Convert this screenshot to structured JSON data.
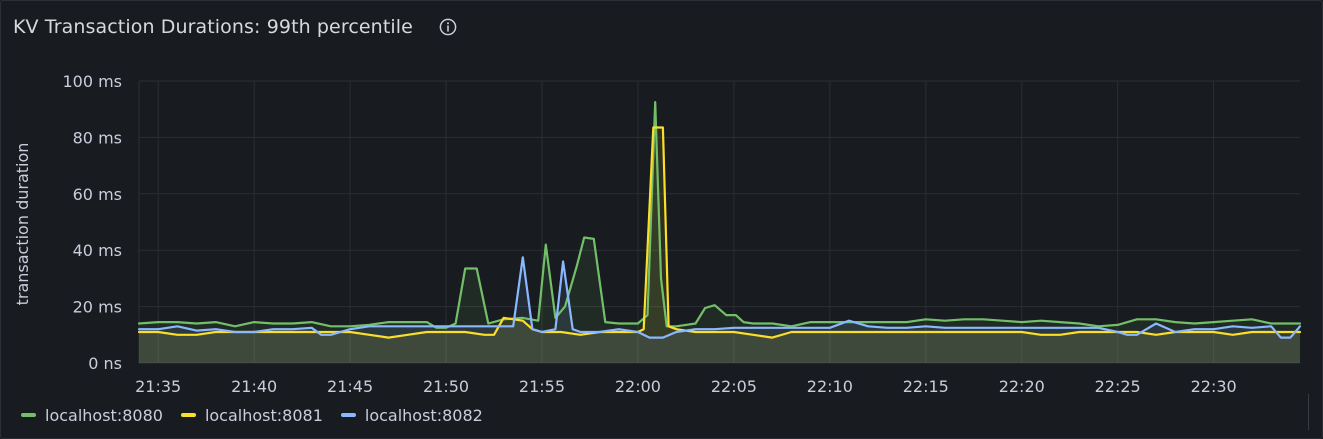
{
  "panel": {
    "title": "KV Transaction Durations: 99th percentile",
    "info_icon": "info-circle-icon"
  },
  "colors": {
    "background": "#181b1f",
    "grid": "#2b2f34",
    "text": "#ccccdc"
  },
  "chart_data": {
    "type": "line",
    "title": "KV Transaction Durations: 99th percentile",
    "ylabel": "transaction duration",
    "xlabel": "",
    "ylim": [
      0,
      100
    ],
    "y_ticks": [
      {
        "value": 0,
        "label": "0 ns"
      },
      {
        "value": 20,
        "label": "20 ms"
      },
      {
        "value": 40,
        "label": "40 ms"
      },
      {
        "value": 60,
        "label": "60 ms"
      },
      {
        "value": 80,
        "label": "80 ms"
      },
      {
        "value": 100,
        "label": "100 ms"
      }
    ],
    "x_ticks": [
      "21:35",
      "21:40",
      "21:45",
      "21:50",
      "21:55",
      "22:00",
      "22:05",
      "22:10",
      "22:15",
      "22:20",
      "22:25",
      "22:30"
    ],
    "xlim": [
      "21:34",
      "22:34.5"
    ],
    "grid": true,
    "legend_position": "bottom-left",
    "series": [
      {
        "name": "localhost:8080",
        "color": "#73bf69",
        "points": [
          [
            "21:34",
            14
          ],
          [
            "21:35",
            14.5
          ],
          [
            "21:36",
            14.5
          ],
          [
            "21:37",
            14
          ],
          [
            "21:38",
            14.5
          ],
          [
            "21:39",
            13
          ],
          [
            "21:40",
            14.5
          ],
          [
            "21:41",
            14
          ],
          [
            "21:42",
            14
          ],
          [
            "21:43",
            14.5
          ],
          [
            "21:44",
            13
          ],
          [
            "21:45",
            13
          ],
          [
            "21:46",
            13.5
          ],
          [
            "21:47",
            14.5
          ],
          [
            "21:48",
            14.5
          ],
          [
            "21:49",
            14.5
          ],
          [
            "21:49.5",
            12.5
          ],
          [
            "21:50",
            12.5
          ],
          [
            "21:50.5",
            14
          ],
          [
            "21:51",
            33.5
          ],
          [
            "21:51.6",
            33.5
          ],
          [
            "21:52.2",
            14
          ],
          [
            "21:53",
            15.5
          ],
          [
            "21:54",
            16
          ],
          [
            "21:54.8",
            15
          ],
          [
            "21:55.2",
            42
          ],
          [
            "21:55.7",
            16
          ],
          [
            "21:56.2",
            20
          ],
          [
            "21:56.8",
            34
          ],
          [
            "21:57.2",
            44.5
          ],
          [
            "21:57.7",
            44
          ],
          [
            "21:58.3",
            14.5
          ],
          [
            "21:59",
            14
          ],
          [
            "21:59.5",
            14
          ],
          [
            "22:00",
            14
          ],
          [
            "22:00.5",
            17
          ],
          [
            "22:00.9",
            92.5
          ],
          [
            "22:01.2",
            30
          ],
          [
            "22:01.5",
            13
          ],
          [
            "22:02",
            13
          ],
          [
            "22:03",
            14
          ],
          [
            "22:03.5",
            19.5
          ],
          [
            "22:04",
            20.5
          ],
          [
            "22:04.6",
            17
          ],
          [
            "22:05.1",
            17
          ],
          [
            "22:05.5",
            14.5
          ],
          [
            "22:06",
            14
          ],
          [
            "22:07",
            14
          ],
          [
            "22:08",
            13
          ],
          [
            "22:09",
            14.5
          ],
          [
            "22:10",
            14.5
          ],
          [
            "22:11",
            14.5
          ],
          [
            "22:12",
            14.5
          ],
          [
            "22:13",
            14.5
          ],
          [
            "22:14",
            14.5
          ],
          [
            "22:15",
            15.5
          ],
          [
            "22:16",
            15
          ],
          [
            "22:17",
            15.5
          ],
          [
            "22:18",
            15.5
          ],
          [
            "22:19",
            15
          ],
          [
            "22:20",
            14.5
          ],
          [
            "22:21",
            15
          ],
          [
            "22:22",
            14.5
          ],
          [
            "22:23",
            14
          ],
          [
            "22:24",
            13
          ],
          [
            "22:25",
            13.5
          ],
          [
            "22:26",
            15.5
          ],
          [
            "22:27",
            15.5
          ],
          [
            "22:28",
            14.5
          ],
          [
            "22:29",
            14
          ],
          [
            "22:30",
            14.5
          ],
          [
            "22:31",
            15
          ],
          [
            "22:32",
            15.5
          ],
          [
            "22:33",
            14
          ],
          [
            "22:34",
            14
          ],
          [
            "22:34.5",
            14
          ]
        ]
      },
      {
        "name": "localhost:8081",
        "color": "#fade2a",
        "points": [
          [
            "21:34",
            11
          ],
          [
            "21:35",
            11
          ],
          [
            "21:36",
            10
          ],
          [
            "21:37",
            10
          ],
          [
            "21:38",
            11
          ],
          [
            "21:39",
            11
          ],
          [
            "21:40",
            11
          ],
          [
            "21:41",
            11
          ],
          [
            "21:42",
            11
          ],
          [
            "21:43",
            11
          ],
          [
            "21:44",
            11
          ],
          [
            "21:45",
            11
          ],
          [
            "21:46",
            10
          ],
          [
            "21:47",
            9
          ],
          [
            "21:48",
            10
          ],
          [
            "21:49",
            11
          ],
          [
            "21:50",
            11
          ],
          [
            "21:51",
            11
          ],
          [
            "21:52",
            10
          ],
          [
            "21:52.5",
            10
          ],
          [
            "21:53",
            16
          ],
          [
            "21:54",
            15
          ],
          [
            "21:54.5",
            12
          ],
          [
            "21:55",
            11
          ],
          [
            "21:56",
            11
          ],
          [
            "21:57",
            10
          ],
          [
            "21:58",
            11
          ],
          [
            "21:59",
            11
          ],
          [
            "22:00",
            11
          ],
          [
            "22:00.3",
            12
          ],
          [
            "22:00.8",
            83.5
          ],
          [
            "22:01.3",
            83.5
          ],
          [
            "22:01.6",
            13
          ],
          [
            "22:02",
            12
          ],
          [
            "22:03",
            11
          ],
          [
            "22:04",
            11
          ],
          [
            "22:05",
            11
          ],
          [
            "22:06",
            10
          ],
          [
            "22:07",
            9
          ],
          [
            "22:08",
            11
          ],
          [
            "22:09",
            11
          ],
          [
            "22:10",
            11
          ],
          [
            "22:11",
            11
          ],
          [
            "22:12",
            11
          ],
          [
            "22:13",
            11
          ],
          [
            "22:14",
            11
          ],
          [
            "22:15",
            11
          ],
          [
            "22:16",
            11
          ],
          [
            "22:17",
            11
          ],
          [
            "22:18",
            11
          ],
          [
            "22:19",
            11
          ],
          [
            "22:20",
            11
          ],
          [
            "22:21",
            10
          ],
          [
            "22:22",
            10
          ],
          [
            "22:23",
            11
          ],
          [
            "22:24",
            11
          ],
          [
            "22:25",
            11
          ],
          [
            "22:26",
            11
          ],
          [
            "22:27",
            10
          ],
          [
            "22:28",
            11
          ],
          [
            "22:29",
            11
          ],
          [
            "22:30",
            11
          ],
          [
            "22:31",
            10
          ],
          [
            "22:32",
            11
          ],
          [
            "22:33",
            11
          ],
          [
            "22:34",
            11
          ],
          [
            "22:34.5",
            11
          ]
        ]
      },
      {
        "name": "localhost:8082",
        "color": "#8ab8ff",
        "points": [
          [
            "21:34",
            12
          ],
          [
            "21:35",
            12
          ],
          [
            "21:36",
            13
          ],
          [
            "21:37",
            11.5
          ],
          [
            "21:38",
            12
          ],
          [
            "21:39",
            11
          ],
          [
            "21:40",
            11
          ],
          [
            "21:41",
            12
          ],
          [
            "21:42",
            12
          ],
          [
            "21:43",
            12.5
          ],
          [
            "21:43.5",
            10
          ],
          [
            "21:44",
            10
          ],
          [
            "21:45",
            12
          ],
          [
            "21:46",
            13
          ],
          [
            "21:47",
            13
          ],
          [
            "21:48",
            13
          ],
          [
            "21:49",
            13
          ],
          [
            "21:50",
            13
          ],
          [
            "21:51",
            13
          ],
          [
            "21:52",
            13
          ],
          [
            "21:53",
            13
          ],
          [
            "21:53.5",
            13
          ],
          [
            "21:54",
            37.5
          ],
          [
            "21:54.5",
            12
          ],
          [
            "21:55",
            11
          ],
          [
            "21:55.7",
            12
          ],
          [
            "21:56.1",
            36
          ],
          [
            "21:56.6",
            12
          ],
          [
            "21:57",
            11
          ],
          [
            "21:58",
            11
          ],
          [
            "21:59",
            12
          ],
          [
            "22:00",
            11
          ],
          [
            "22:00.6",
            9
          ],
          [
            "22:01.3",
            9
          ],
          [
            "22:02",
            11
          ],
          [
            "22:03",
            12
          ],
          [
            "22:04",
            12
          ],
          [
            "22:05",
            12.5
          ],
          [
            "22:06",
            12.5
          ],
          [
            "22:07",
            12.5
          ],
          [
            "22:08",
            12.5
          ],
          [
            "22:09",
            12.5
          ],
          [
            "22:10",
            12.5
          ],
          [
            "22:11",
            15
          ],
          [
            "22:12",
            13
          ],
          [
            "22:13",
            12.5
          ],
          [
            "22:14",
            12.5
          ],
          [
            "22:15",
            13
          ],
          [
            "22:16",
            12.5
          ],
          [
            "22:17",
            12.5
          ],
          [
            "22:18",
            12.5
          ],
          [
            "22:19",
            12.5
          ],
          [
            "22:20",
            12.5
          ],
          [
            "22:21",
            12.5
          ],
          [
            "22:22",
            12.5
          ],
          [
            "22:23",
            12.5
          ],
          [
            "22:24",
            12.5
          ],
          [
            "22:25",
            11
          ],
          [
            "22:25.5",
            10
          ],
          [
            "22:26",
            10
          ],
          [
            "22:27",
            14
          ],
          [
            "22:28",
            11
          ],
          [
            "22:29",
            12
          ],
          [
            "22:30",
            12
          ],
          [
            "22:31",
            13
          ],
          [
            "22:32",
            12.5
          ],
          [
            "22:33",
            13
          ],
          [
            "22:33.5",
            9
          ],
          [
            "22:34",
            9
          ],
          [
            "22:34.5",
            13
          ]
        ]
      }
    ]
  }
}
